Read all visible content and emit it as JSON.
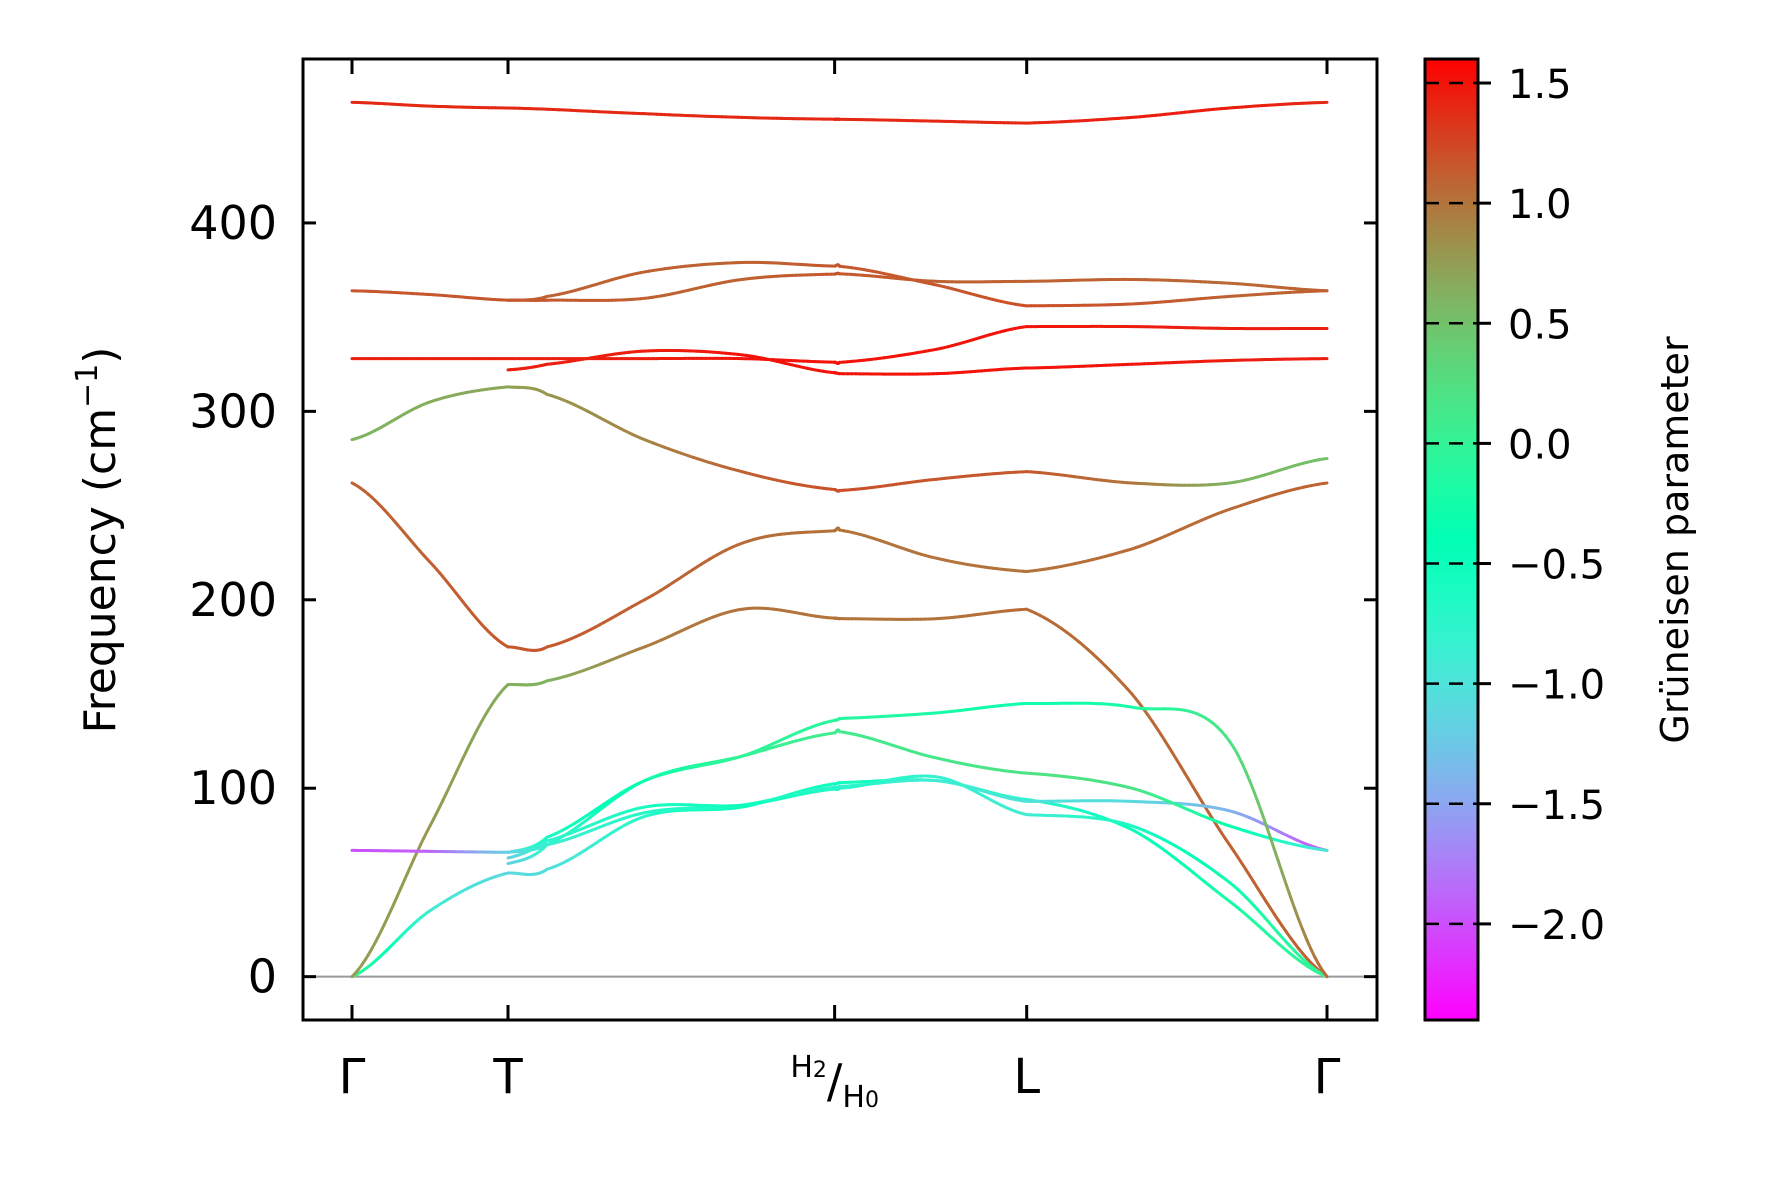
{
  "chart_data": {
    "type": "line",
    "ylabel": "Frequency (cm",
    "ylabel_superscript": "−1",
    "ylabel_suffix": ")",
    "ylim": [
      -23,
      487
    ],
    "yticks": [
      0,
      100,
      200,
      300,
      400
    ],
    "xticks": [
      {
        "label": "Γ"
      },
      {
        "label": "T"
      },
      {
        "label": "H",
        "composite": true,
        "num_sub": "2",
        "den": "H",
        "den_sub": "0"
      },
      {
        "label": "L"
      },
      {
        "label": "Γ"
      }
    ],
    "segments": [
      {
        "name": "Γ–T",
        "t_range": [
          0,
          0.16
        ]
      },
      {
        "name": "T–H2/H0",
        "t_range": [
          0.16,
          0.495
        ]
      },
      {
        "name": "H2/H0–L",
        "t_range": [
          0.495,
          0.692
        ]
      },
      {
        "name": "L–Γ",
        "t_range": [
          0.692,
          1.0
        ]
      }
    ],
    "colorbar": {
      "label": "Grüneisen parameter",
      "range": [
        -2.4,
        1.6
      ],
      "ticks": [
        1.5,
        1.0,
        0.5,
        0.0,
        -0.5,
        -1.0,
        -1.5,
        -2.0
      ],
      "tick_labels": [
        "1.5",
        "1.0",
        "0.5",
        "0.0",
        "−0.5",
        "−1.0",
        "−1.5",
        "−2.0"
      ],
      "colormap": "rainbow"
    },
    "branches": [
      {
        "name": "band-1",
        "pts": [
          [
            0,
            0,
            0.0
          ],
          [
            0.08,
            35,
            -0.9
          ],
          [
            0.16,
            55,
            -1.1
          ],
          [
            0.2,
            57,
            -1.05
          ],
          [
            0.3,
            85,
            -0.7
          ],
          [
            0.4,
            90,
            -0.5
          ],
          [
            0.5,
            103,
            -0.55
          ],
          [
            0.6,
            104,
            -0.6
          ],
          [
            0.692,
            94,
            -0.75
          ],
          [
            0.8,
            78,
            -0.5
          ],
          [
            0.9,
            40,
            -0.2
          ],
          [
            1.0,
            0,
            0.0
          ]
        ]
      },
      {
        "name": "band-2",
        "pts": [
          [
            0,
            0,
            0.75
          ],
          [
            0.08,
            80,
            0.78
          ],
          [
            0.16,
            155,
            0.65
          ],
          [
            0.2,
            157,
            0.6
          ],
          [
            0.3,
            175,
            0.95
          ],
          [
            0.4,
            195,
            1.0
          ],
          [
            0.5,
            190,
            1.0
          ],
          [
            0.6,
            190,
            1.0
          ],
          [
            0.692,
            195,
            1.05
          ],
          [
            0.8,
            150,
            1.05
          ],
          [
            0.9,
            70,
            1.1
          ],
          [
            1.0,
            0,
            1.1
          ]
        ]
      },
      {
        "name": "band-3",
        "pts": [
          [
            0,
            67,
            -2.0
          ],
          [
            0.08,
            66.5,
            -1.9
          ],
          [
            0.16,
            66,
            -1.2
          ],
          [
            0.2,
            70,
            -0.9
          ],
          [
            0.3,
            87,
            -0.7
          ],
          [
            0.4,
            91,
            -0.6
          ],
          [
            0.5,
            101,
            -0.8
          ],
          [
            0.6,
            104,
            -0.9
          ],
          [
            0.692,
            93,
            -1.0
          ],
          [
            0.8,
            93,
            -1.1
          ],
          [
            0.9,
            88,
            -1.4
          ],
          [
            1.0,
            67,
            -2.0
          ]
        ]
      },
      {
        "name": "band-4",
        "pts": [
          [
            0.16,
            60,
            -1.2
          ],
          [
            0.2,
            70,
            -0.8
          ],
          [
            0.3,
            104,
            -0.3
          ],
          [
            0.4,
            117,
            0.0
          ],
          [
            0.5,
            130,
            0.1
          ],
          [
            0.6,
            116,
            0.15
          ],
          [
            0.692,
            108,
            0.2
          ],
          [
            0.8,
            100,
            0.2
          ],
          [
            0.9,
            80,
            -0.3
          ],
          [
            1.0,
            67,
            -1.0
          ]
        ]
      },
      {
        "name": "band-5",
        "pts": [
          [
            0.16,
            63,
            -1.2
          ],
          [
            0.2,
            72,
            -0.8
          ],
          [
            0.3,
            90,
            -0.6
          ],
          [
            0.4,
            91,
            -0.5
          ],
          [
            0.5,
            100,
            -0.7
          ],
          [
            0.6,
            106,
            -0.8
          ],
          [
            0.692,
            86,
            -0.9
          ],
          [
            0.8,
            80,
            -0.6
          ],
          [
            0.9,
            50,
            -0.3
          ],
          [
            1.0,
            0,
            0.0
          ]
        ]
      },
      {
        "name": "band-6",
        "pts": [
          [
            0.16,
            66,
            -1.2
          ],
          [
            0.2,
            74,
            -0.6
          ],
          [
            0.3,
            104,
            -0.3
          ],
          [
            0.4,
            117,
            0.0
          ],
          [
            0.5,
            137,
            -0.1
          ],
          [
            0.6,
            140,
            -0.2
          ],
          [
            0.692,
            145,
            -0.3
          ],
          [
            0.8,
            143,
            -0.2
          ],
          [
            0.9,
            125,
            0.2
          ],
          [
            1.0,
            0,
            1.1
          ]
        ]
      },
      {
        "name": "band-7",
        "pts": [
          [
            0,
            262,
            1.1
          ],
          [
            0.08,
            220,
            1.1
          ],
          [
            0.16,
            175,
            1.15
          ],
          [
            0.2,
            175,
            1.15
          ],
          [
            0.3,
            200,
            1.1
          ],
          [
            0.4,
            230,
            1.05
          ],
          [
            0.5,
            237,
            1.0
          ],
          [
            0.6,
            222,
            1.0
          ],
          [
            0.692,
            215,
            1.0
          ],
          [
            0.8,
            227,
            1.05
          ],
          [
            0.9,
            248,
            1.05
          ],
          [
            1.0,
            262,
            1.1
          ]
        ]
      },
      {
        "name": "band-8",
        "pts": [
          [
            0,
            285,
            0.6
          ],
          [
            0.08,
            305,
            0.65
          ],
          [
            0.16,
            313,
            0.7
          ],
          [
            0.2,
            309,
            0.8
          ],
          [
            0.3,
            285,
            0.9
          ],
          [
            0.4,
            268,
            1.1
          ],
          [
            0.5,
            258,
            1.2
          ],
          [
            0.6,
            264,
            1.15
          ],
          [
            0.692,
            268,
            1.15
          ],
          [
            0.8,
            262,
            1.0
          ],
          [
            0.9,
            262,
            0.6
          ],
          [
            1.0,
            275,
            0.5
          ]
        ]
      },
      {
        "name": "band-9",
        "pts": [
          [
            0,
            328,
            1.45
          ],
          [
            0.08,
            328,
            1.45
          ],
          [
            0.16,
            328,
            1.45
          ],
          [
            0.3,
            328,
            1.45
          ],
          [
            0.4,
            328,
            1.5
          ],
          [
            0.5,
            326,
            1.5
          ],
          [
            0.6,
            333,
            1.5
          ],
          [
            0.692,
            345,
            1.5
          ],
          [
            0.8,
            345,
            1.45
          ],
          [
            0.9,
            344,
            1.45
          ],
          [
            1.0,
            344,
            1.45
          ]
        ]
      },
      {
        "name": "band-10",
        "pts": [
          [
            0.16,
            322,
            1.45
          ],
          [
            0.2,
            325,
            1.45
          ],
          [
            0.3,
            332,
            1.45
          ],
          [
            0.4,
            330,
            1.5
          ],
          [
            0.5,
            320,
            1.5
          ],
          [
            0.6,
            320,
            1.5
          ],
          [
            0.692,
            323,
            1.5
          ],
          [
            0.8,
            325,
            1.5
          ],
          [
            0.9,
            327,
            1.45
          ],
          [
            1.0,
            328,
            1.45
          ]
        ]
      },
      {
        "name": "band-11",
        "pts": [
          [
            0,
            364,
            1.15
          ],
          [
            0.08,
            362,
            1.15
          ],
          [
            0.16,
            359,
            1.15
          ],
          [
            0.2,
            359,
            1.15
          ],
          [
            0.3,
            360,
            1.1
          ],
          [
            0.4,
            370,
            1.1
          ],
          [
            0.5,
            373,
            1.15
          ],
          [
            0.6,
            369,
            1.1
          ],
          [
            0.692,
            369,
            1.1
          ],
          [
            0.8,
            370,
            1.1
          ],
          [
            0.9,
            368,
            1.05
          ],
          [
            1.0,
            364,
            1.1
          ]
        ]
      },
      {
        "name": "band-12",
        "pts": [
          [
            0.16,
            359,
            1.15
          ],
          [
            0.2,
            361,
            1.1
          ],
          [
            0.3,
            374,
            1.1
          ],
          [
            0.4,
            379,
            1.1
          ],
          [
            0.5,
            377,
            1.15
          ],
          [
            0.6,
            367,
            1.15
          ],
          [
            0.692,
            356,
            1.2
          ],
          [
            0.8,
            357,
            1.15
          ],
          [
            0.9,
            361,
            1.1
          ],
          [
            1.0,
            364,
            1.1
          ]
        ]
      },
      {
        "name": "band-13",
        "pts": [
          [
            0,
            464,
            1.4
          ],
          [
            0.08,
            462,
            1.4
          ],
          [
            0.16,
            461,
            1.4
          ],
          [
            0.3,
            458,
            1.4
          ],
          [
            0.4,
            456,
            1.4
          ],
          [
            0.5,
            455,
            1.4
          ],
          [
            0.6,
            454,
            1.4
          ],
          [
            0.692,
            453,
            1.4
          ],
          [
            0.8,
            456,
            1.45
          ],
          [
            0.9,
            461,
            1.45
          ],
          [
            1.0,
            464,
            1.4
          ]
        ]
      }
    ]
  }
}
